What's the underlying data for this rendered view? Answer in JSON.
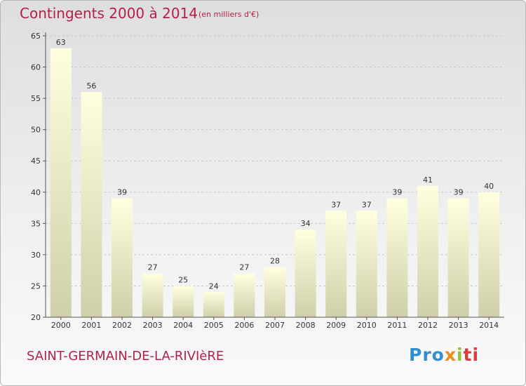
{
  "header": {
    "title": "Contingents 2000 à 2014",
    "subtitle": "(en milliers d'€)"
  },
  "footer": {
    "commune": "SAINT-GERMAIN-DE-LA-RIVIèRE",
    "logo": {
      "p1": "Pro",
      "p2": "x",
      "p3": "i",
      "p4": "ti"
    }
  },
  "colors": {
    "title": "#b5204a",
    "bar_top": "#ffffe0",
    "bar_bottom": "#cfcfaa",
    "grid": "#c8c8c8"
  },
  "chart_data": {
    "type": "bar",
    "title": "Contingents 2000 à 2014",
    "subtitle": "(en milliers d'€)",
    "categories": [
      "2000",
      "2001",
      "2002",
      "2003",
      "2004",
      "2005",
      "2006",
      "2007",
      "2008",
      "2009",
      "2010",
      "2011",
      "2012",
      "2013",
      "2014"
    ],
    "values": [
      63,
      56,
      39,
      27,
      25,
      24,
      27,
      28,
      34,
      37,
      37,
      39,
      41,
      39,
      40
    ],
    "ylim": [
      20,
      65
    ],
    "yticks": [
      20,
      25,
      30,
      35,
      40,
      45,
      50,
      55,
      60,
      65
    ],
    "grid": true,
    "data_labels": true
  }
}
